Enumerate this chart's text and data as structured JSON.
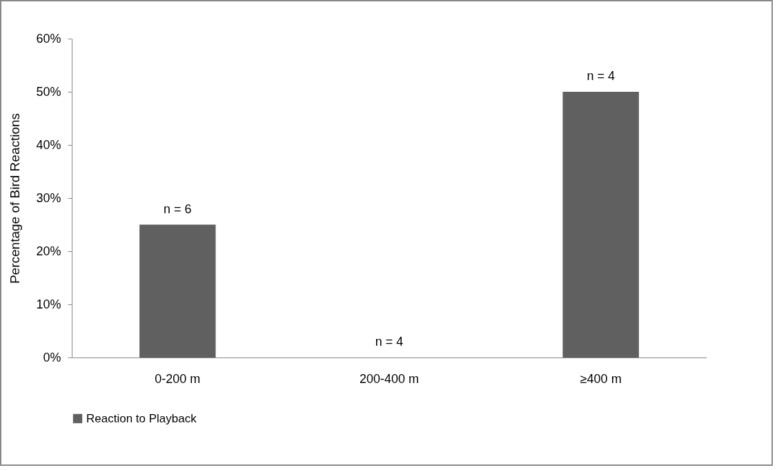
{
  "chart_data": {
    "type": "bar",
    "ylabel": "Percentage of Bird Reactions",
    "categories": [
      "0-200 m",
      "200-400 m",
      "≥400 m"
    ],
    "series": [
      {
        "name": "Reaction to Playback",
        "color": "#606060",
        "values": [
          25,
          0,
          50
        ]
      }
    ],
    "ylim": [
      0,
      60
    ],
    "yticks": [
      {
        "value": 0,
        "label": "0%"
      },
      {
        "value": 10,
        "label": "10%"
      },
      {
        "value": 20,
        "label": "20%"
      },
      {
        "value": 30,
        "label": "30%"
      },
      {
        "value": 40,
        "label": "40%"
      },
      {
        "value": 50,
        "label": "50%"
      },
      {
        "value": 60,
        "label": "60%"
      }
    ],
    "annotations": [
      {
        "text": "n = 6",
        "x": "0-200 m",
        "y": 25
      },
      {
        "text": "n = 4",
        "x": "200-400 m",
        "y": 0
      },
      {
        "text": "n = 4",
        "x": "≥400 m",
        "y": 50
      }
    ],
    "grid": false,
    "legend": "bottom"
  }
}
